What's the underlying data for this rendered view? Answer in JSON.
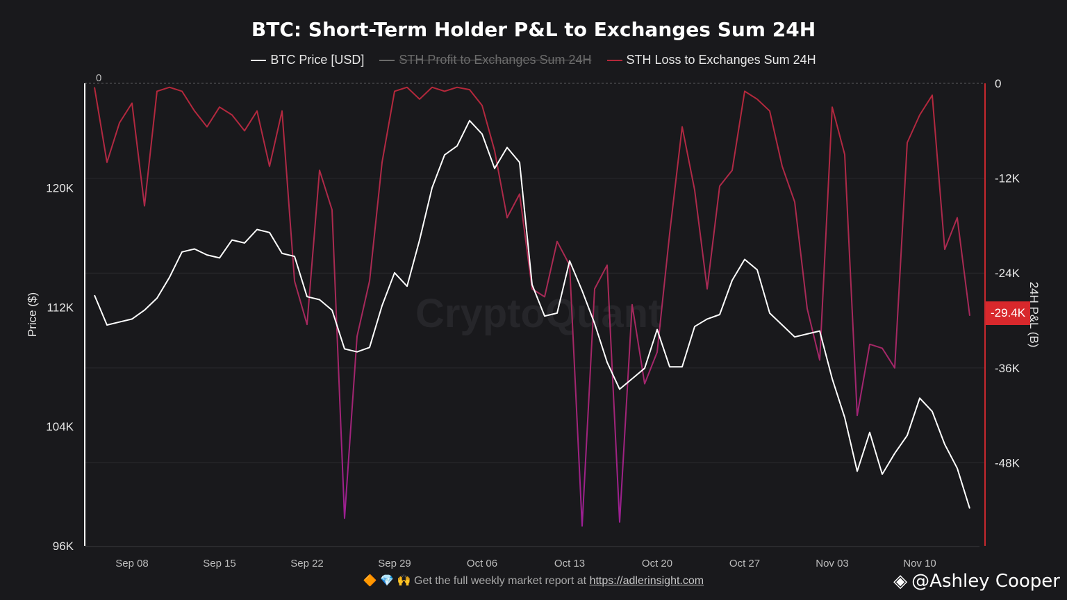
{
  "chart_data": {
    "type": "line",
    "title": "BTC: Short-Term Holder P&L to Exchanges Sum 24H",
    "legend": [
      {
        "name": "BTC Price [USD]",
        "color": "#ffffff",
        "active": true
      },
      {
        "name": "STH Profit to Exchanges Sum 24H",
        "color": "#6b6b6b",
        "active": false
      },
      {
        "name": "STH Loss to Exchanges Sum 24H",
        "color": "#b5283a",
        "active": true
      }
    ],
    "legend_placement": "top-center",
    "x_ticks": [
      "Sep 08",
      "Sep 15",
      "Sep 22",
      "Sep 29",
      "Oct 06",
      "Oct 13",
      "Oct 20",
      "Oct 27",
      "Nov 03",
      "Nov 10"
    ],
    "ylabel_left": "Price ($)",
    "ylabel_right": "24H P&L (B)",
    "y_left_ticks": [
      "120K",
      "112K",
      "104K",
      "96K"
    ],
    "y_right_ticks": [
      "0",
      "-12K",
      "-24K",
      "-36K",
      "-48K"
    ],
    "y_left_range": [
      96000,
      127000
    ],
    "y_right_range": [
      -58500,
      0
    ],
    "zero_label": "0",
    "current_value_badge": "-29.4K",
    "grid": true,
    "series": [
      {
        "name": "BTC Price [USD]",
        "x": [
          "2025-09-05",
          "2025-09-06",
          "2025-09-07",
          "2025-09-08",
          "2025-09-09",
          "2025-09-10",
          "2025-09-11",
          "2025-09-12",
          "2025-09-13",
          "2025-09-14",
          "2025-09-15",
          "2025-09-16",
          "2025-09-17",
          "2025-09-18",
          "2025-09-19",
          "2025-09-20",
          "2025-09-21",
          "2025-09-22",
          "2025-09-23",
          "2025-09-24",
          "2025-09-25",
          "2025-09-26",
          "2025-09-27",
          "2025-09-28",
          "2025-09-29",
          "2025-09-30",
          "2025-10-01",
          "2025-10-02",
          "2025-10-03",
          "2025-10-04",
          "2025-10-05",
          "2025-10-06",
          "2025-10-07",
          "2025-10-08",
          "2025-10-09",
          "2025-10-10",
          "2025-10-11",
          "2025-10-12",
          "2025-10-13",
          "2025-10-14",
          "2025-10-15",
          "2025-10-16",
          "2025-10-17",
          "2025-10-18",
          "2025-10-19",
          "2025-10-20",
          "2025-10-21",
          "2025-10-22",
          "2025-10-23",
          "2025-10-24",
          "2025-10-25",
          "2025-10-26",
          "2025-10-27",
          "2025-10-28",
          "2025-10-29",
          "2025-10-30",
          "2025-10-31",
          "2025-11-01",
          "2025-11-02",
          "2025-11-03",
          "2025-11-04",
          "2025-11-05",
          "2025-11-06",
          "2025-11-07",
          "2025-11-08",
          "2025-11-09",
          "2025-11-10",
          "2025-11-11",
          "2025-11-12",
          "2025-11-13",
          "2025-11-14"
        ],
        "values": [
          112800,
          110800,
          111000,
          111200,
          111800,
          112600,
          114000,
          115700,
          115900,
          115500,
          115300,
          116500,
          116300,
          117200,
          117000,
          115600,
          115400,
          112700,
          112500,
          111800,
          109200,
          109000,
          109300,
          112100,
          114300,
          113400,
          116500,
          120000,
          122200,
          122800,
          124500,
          123600,
          121300,
          122700,
          121700,
          113500,
          111400,
          111600,
          115100,
          113100,
          110900,
          108300,
          106500,
          107200,
          107900,
          110500,
          108000,
          108000,
          110700,
          111200,
          111500,
          113800,
          115200,
          114500,
          111600,
          110800,
          110000,
          110200,
          110400,
          107200,
          104600,
          101000,
          103600,
          100800,
          102200,
          103400,
          105900,
          105000,
          102800,
          101200,
          98500
        ]
      },
      {
        "name": "STH Loss to Exchanges Sum 24H",
        "x": [
          "2025-09-05",
          "2025-09-06",
          "2025-09-07",
          "2025-09-08",
          "2025-09-09",
          "2025-09-10",
          "2025-09-11",
          "2025-09-12",
          "2025-09-13",
          "2025-09-14",
          "2025-09-15",
          "2025-09-16",
          "2025-09-17",
          "2025-09-18",
          "2025-09-19",
          "2025-09-20",
          "2025-09-21",
          "2025-09-22",
          "2025-09-23",
          "2025-09-24",
          "2025-09-25",
          "2025-09-26",
          "2025-09-27",
          "2025-09-28",
          "2025-09-29",
          "2025-09-30",
          "2025-10-01",
          "2025-10-02",
          "2025-10-03",
          "2025-10-04",
          "2025-10-05",
          "2025-10-06",
          "2025-10-07",
          "2025-10-08",
          "2025-10-09",
          "2025-10-10",
          "2025-10-11",
          "2025-10-12",
          "2025-10-13",
          "2025-10-14",
          "2025-10-15",
          "2025-10-16",
          "2025-10-17",
          "2025-10-18",
          "2025-10-19",
          "2025-10-20",
          "2025-10-21",
          "2025-10-22",
          "2025-10-23",
          "2025-10-24",
          "2025-10-25",
          "2025-10-26",
          "2025-10-27",
          "2025-10-28",
          "2025-10-29",
          "2025-10-30",
          "2025-10-31",
          "2025-11-01",
          "2025-11-02",
          "2025-11-03",
          "2025-11-04",
          "2025-11-05",
          "2025-11-06",
          "2025-11-07",
          "2025-11-08",
          "2025-11-09",
          "2025-11-10",
          "2025-11-11",
          "2025-11-12",
          "2025-11-13",
          "2025-11-14"
        ],
        "values": [
          -500,
          -10000,
          -5000,
          -2500,
          -15500,
          -1000,
          -500,
          -1000,
          -3500,
          -5500,
          -3000,
          -4000,
          -6000,
          -3500,
          -10500,
          -3500,
          -25000,
          -30500,
          -11000,
          -16000,
          -55000,
          -32000,
          -25000,
          -10000,
          -1000,
          -500,
          -2000,
          -500,
          -1000,
          -500,
          -800,
          -2800,
          -8500,
          -17000,
          -14000,
          -26000,
          -27000,
          -20000,
          -23000,
          -56000,
          -26000,
          -23000,
          -55500,
          -28000,
          -38000,
          -34000,
          -19000,
          -5500,
          -13500,
          -26000,
          -13000,
          -11000,
          -1000,
          -2000,
          -3500,
          -10500,
          -15000,
          -28500,
          -35000,
          -3000,
          -9000,
          -42000,
          -33000,
          -33500,
          -36000,
          -7500,
          -4000,
          -1500,
          -21000,
          -17000,
          -29400
        ]
      }
    ]
  },
  "footer": {
    "emojis": "🔶 💎 🙌",
    "text": "Get the full weekly market report at",
    "link": "https://adlerinsight.com"
  },
  "watermark": "CryptoQuant",
  "author": "@Ashley Cooper",
  "colors": {
    "background": "#19191c",
    "price": "#ffffff",
    "loss": "#b5283a",
    "loss_deep": "#a0208a",
    "badge": "#d8282c",
    "right_axis": "#c8282e"
  }
}
